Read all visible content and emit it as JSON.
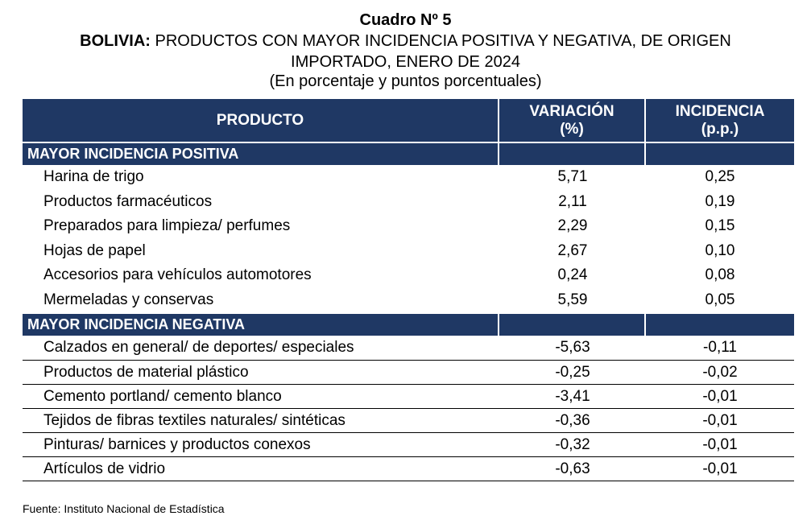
{
  "title": "Cuadro Nº 5",
  "subtitle_bold": "BOLIVIA:",
  "subtitle_rest": " PRODUCTOS CON MAYOR INCIDENCIA POSITIVA Y NEGATIVA, DE ORIGEN",
  "subtitle_line2": "IMPORTADO, ENERO DE 2024",
  "units": "(En porcentaje y puntos porcentuales)",
  "columns": {
    "producto": "PRODUCTO",
    "variacion_1": "VARIACIÓN",
    "variacion_2": "(%)",
    "incidencia_1": "INCIDENCIA",
    "incidencia_2": "(p.p.)"
  },
  "positive": {
    "heading": "MAYOR INCIDENCIA POSITIVA",
    "rows": [
      {
        "producto": "Harina de trigo",
        "variacion": "5,71",
        "incidencia": "0,25"
      },
      {
        "producto": "Productos farmacéuticos",
        "variacion": "2,11",
        "incidencia": "0,19"
      },
      {
        "producto": "Preparados para limpieza/ perfumes",
        "variacion": "2,29",
        "incidencia": "0,15"
      },
      {
        "producto": "Hojas de papel",
        "variacion": "2,67",
        "incidencia": "0,10"
      },
      {
        "producto": "Accesorios para vehículos automotores",
        "variacion": "0,24",
        "incidencia": "0,08"
      },
      {
        "producto": "Mermeladas y conservas",
        "variacion": "5,59",
        "incidencia": "0,05"
      }
    ]
  },
  "negative": {
    "heading": "MAYOR INCIDENCIA NEGATIVA",
    "rows": [
      {
        "producto": "Calzados en general/ de deportes/ especiales",
        "variacion": "-5,63",
        "incidencia": "-0,11"
      },
      {
        "producto": "Productos de material plástico",
        "variacion": "-0,25",
        "incidencia": "-0,02"
      },
      {
        "producto": "Cemento portland/ cemento blanco",
        "variacion": "-3,41",
        "incidencia": "-0,01"
      },
      {
        "producto": "Tejidos de fibras textiles naturales/ sintéticas",
        "variacion": "-0,36",
        "incidencia": "-0,01"
      },
      {
        "producto": "Pinturas/ barnices y productos conexos",
        "variacion": "-0,32",
        "incidencia": "-0,01"
      },
      {
        "producto": "Artículos de vidrio",
        "variacion": "-0,63",
        "incidencia": "-0,01"
      }
    ]
  },
  "source": "Fuente: Instituto Nacional de Estadística"
}
